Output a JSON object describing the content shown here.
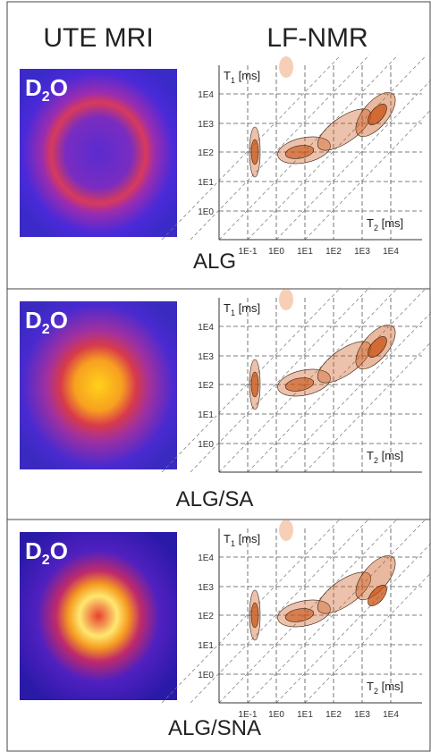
{
  "header": {
    "left": "UTE MRI",
    "right": "LF-NMR"
  },
  "panels": [
    {
      "caption": "ALG",
      "image_label": {
        "main": "D",
        "subscript": "2",
        "end": "O"
      },
      "y_axis_label": {
        "symbol": "T",
        "subscript": "1",
        "unit": " [ms]"
      },
      "x_axis_label": {
        "symbol": "T",
        "subscript": "2",
        "unit": " [ms]"
      },
      "y_ticks": [
        "1E4",
        "1E3",
        "1E2",
        "1E1",
        "1E0"
      ],
      "x_ticks": [
        "1E-1",
        "1E0",
        "1E1",
        "1E2",
        "1E3",
        "1E4"
      ]
    },
    {
      "caption": "ALG/SA",
      "image_label": {
        "main": "D",
        "subscript": "2",
        "end": "O"
      },
      "y_axis_label": {
        "symbol": "T",
        "subscript": "1",
        "unit": " [ms]"
      },
      "x_axis_label": {
        "symbol": "T",
        "subscript": "2",
        "unit": " [ms]"
      },
      "y_ticks": [
        "1E4",
        "1E3",
        "1E2",
        "1E1",
        "1E0"
      ],
      "x_ticks": []
    },
    {
      "caption": "ALG/SNA",
      "image_label": {
        "main": "D",
        "subscript": "2",
        "end": "O"
      },
      "y_axis_label": {
        "symbol": "T",
        "subscript": "1",
        "unit": " [ms]"
      },
      "x_axis_label": {
        "symbol": "T",
        "subscript": "2",
        "unit": " [ms]"
      },
      "y_ticks": [
        "1E4",
        "1E3",
        "1E2",
        "1E1",
        "1E0"
      ],
      "x_ticks": [
        "1E-1",
        "1E0",
        "1E1",
        "1E2",
        "1E3",
        "1E4"
      ]
    }
  ]
}
